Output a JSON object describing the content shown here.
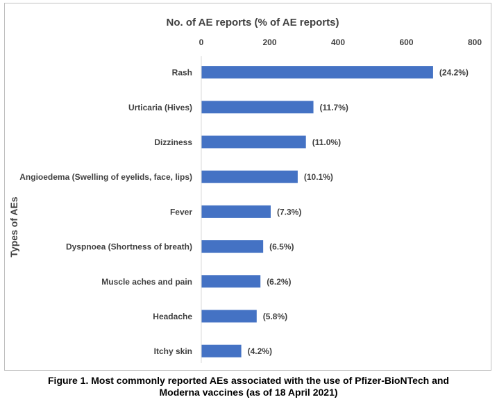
{
  "chart_data": {
    "type": "bar",
    "orientation": "horizontal",
    "title": "No. of AE reports (% of AE reports)",
    "xlabel": "",
    "ylabel": "Types of AEs",
    "xlim": [
      0,
      800
    ],
    "x_ticks": [
      "0",
      "200",
      "400",
      "600",
      "800"
    ],
    "categories": [
      "Rash",
      "Urticaria (Hives)",
      "Dizziness",
      "Angioedema (Swelling of eyelids, face, lips)",
      "Fever",
      "Dyspnoea (Shortness of breath)",
      "Muscle aches and pain",
      "Headache",
      "Itchy skin"
    ],
    "values": [
      678,
      328,
      306,
      282,
      203,
      181,
      173,
      162,
      117
    ],
    "data_labels": [
      "(24.2%)",
      "(11.7%)",
      "(11.0%)",
      "(10.1%)",
      "(7.3%)",
      "(6.5%)",
      "(6.2%)",
      "(5.8%)",
      "(4.2%)"
    ],
    "bar_color": "#4472c4",
    "axis_color": "#d9d9d9",
    "grid": false,
    "legend": "none"
  },
  "caption": {
    "line1": "Figure 1. Most commonly reported AEs associated with the use of Pfizer-BioNTech and",
    "line2": "Moderna vaccines (as of 18 April 2021)"
  }
}
